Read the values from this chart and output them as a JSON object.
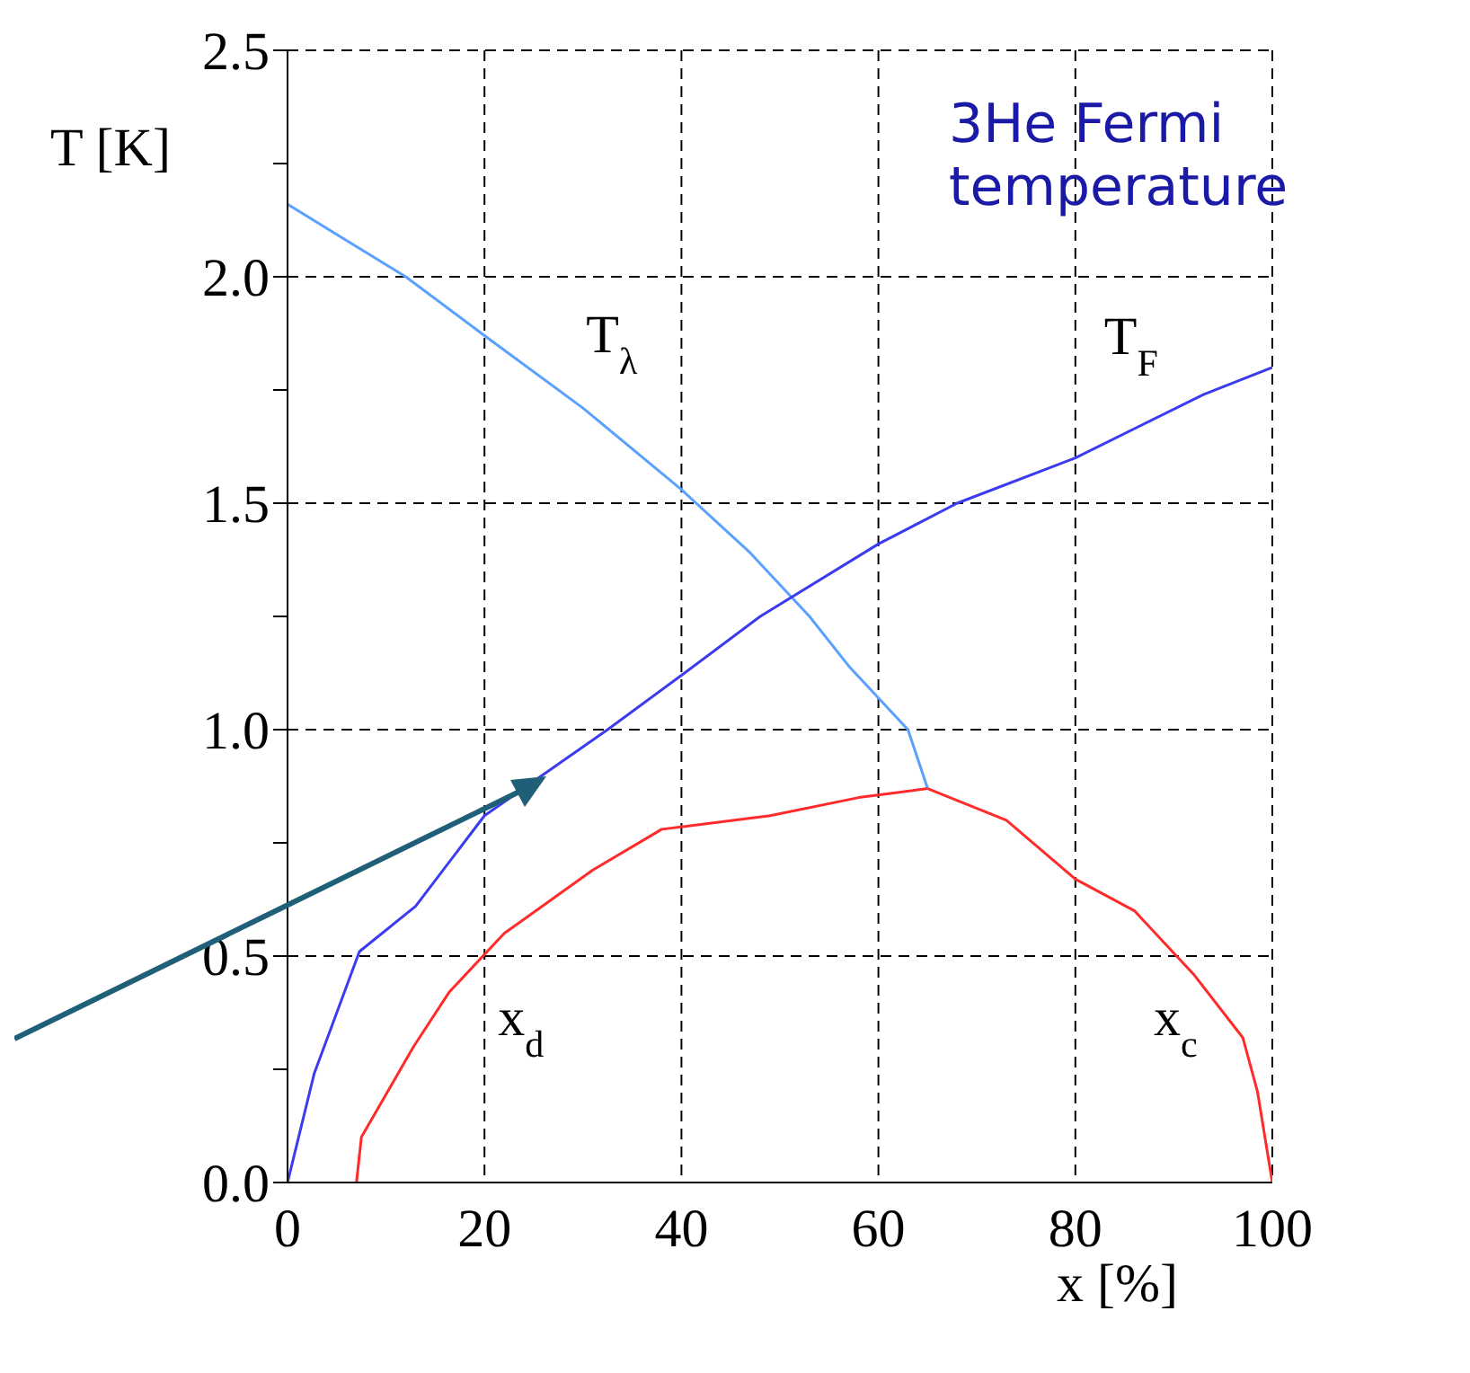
{
  "chart_data": {
    "type": "line",
    "xlabel": "x [%]",
    "ylabel": "T [K]",
    "xlim": [
      0,
      100
    ],
    "xticks": [
      0,
      20,
      40,
      60,
      80,
      100
    ],
    "ylim": [
      0,
      2.5
    ],
    "yticks": [
      {
        "value": 0,
        "label": "0.0"
      },
      {
        "value": 0.25,
        "label": null
      },
      {
        "value": 0.5,
        "label": "0.5"
      },
      {
        "value": 0.75,
        "label": null
      },
      {
        "value": 1,
        "label": "1.0"
      },
      {
        "value": 1.25,
        "label": null
      },
      {
        "value": 1.5,
        "label": "1.5"
      },
      {
        "value": 1.75,
        "label": null
      },
      {
        "value": 2,
        "label": "2.0"
      },
      {
        "value": 2.25,
        "label": null
      },
      {
        "value": 2.5,
        "label": "2.5"
      }
    ],
    "grid": true,
    "line_style": "solid",
    "marker": "none",
    "series": [
      {
        "name": "T$_{λ}$",
        "color": "#5aa0ff",
        "x": [
          0,
          12,
          20,
          30,
          40,
          47,
          53,
          57,
          60,
          63,
          65
        ],
        "values": [
          2.16,
          2.0,
          1.87,
          1.71,
          1.53,
          1.39,
          1.25,
          1.14,
          1.07,
          1.0,
          0.87
        ]
      },
      {
        "name": "T$_{F}$",
        "color": "#3b3bef",
        "x": [
          0,
          2.7,
          7.3,
          13,
          20,
          32.5,
          40,
          48,
          60,
          68,
          80,
          93,
          100
        ],
        "values": [
          0,
          0.24,
          0.51,
          0.61,
          0.81,
          1.0,
          1.12,
          1.25,
          1.41,
          1.5,
          1.6,
          1.74,
          1.8
        ]
      },
      {
        "name": "x$_{d}$",
        "color": "#ff2a2a",
        "x": [
          7,
          7.5,
          12.8,
          16.4,
          22,
          31,
          38,
          49,
          58,
          65
        ],
        "values": [
          0,
          0.1,
          0.3,
          0.42,
          0.55,
          0.69,
          0.78,
          0.81,
          0.85,
          0.87
        ]
      },
      {
        "name": "x$_{c}$",
        "color": "#ff2a2a",
        "x": [
          65,
          73,
          80,
          86,
          92,
          97,
          98.5,
          100
        ],
        "values": [
          0.87,
          0.8,
          0.67,
          0.6,
          0.46,
          0.32,
          0.2,
          0
        ]
      }
    ],
    "annotations": [
      "3He Fermi temperature"
    ]
  }
}
